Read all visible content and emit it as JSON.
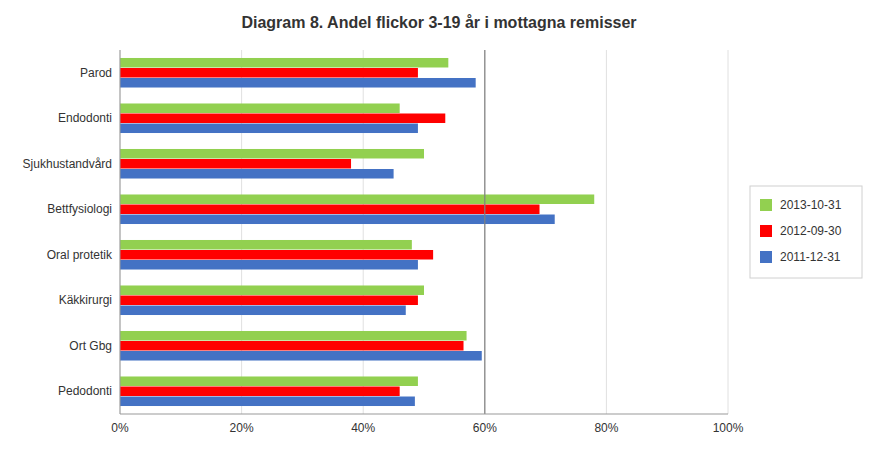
{
  "chart_data": {
    "type": "bar",
    "orientation": "horizontal",
    "title": "Diagram 8. Andel flickor 3-19 år i mottagna remisser",
    "categories": [
      "Pedodonti",
      "Ort Gbg",
      "Käkkirurgi",
      "Oral protetik",
      "Bettfysiologi",
      "Sjukhustandvård",
      "Endodonti",
      "Parod"
    ],
    "series": [
      {
        "name": "2013-10-31",
        "color": "#92d050",
        "values": [
          0.49,
          0.57,
          0.5,
          0.48,
          0.78,
          0.5,
          0.46,
          0.54
        ]
      },
      {
        "name": "2012-09-30",
        "color": "#ff0000",
        "values": [
          0.46,
          0.565,
          0.49,
          0.515,
          0.69,
          0.38,
          0.535,
          0.49
        ]
      },
      {
        "name": "2011-12-31",
        "color": "#4472c4",
        "values": [
          0.485,
          0.595,
          0.47,
          0.49,
          0.715,
          0.45,
          0.49,
          0.585
        ]
      }
    ],
    "xlim": [
      0,
      1.0
    ],
    "xticks": [
      {
        "value": 0,
        "label": "0%"
      },
      {
        "value": 0.2,
        "label": "20%"
      },
      {
        "value": 0.4,
        "label": "40%"
      },
      {
        "value": 0.6,
        "label": "60%"
      },
      {
        "value": 0.8,
        "label": "80%"
      },
      {
        "value": 1.0,
        "label": "100%"
      }
    ],
    "reference_line": 0.6,
    "grid": true,
    "legend": "right"
  }
}
